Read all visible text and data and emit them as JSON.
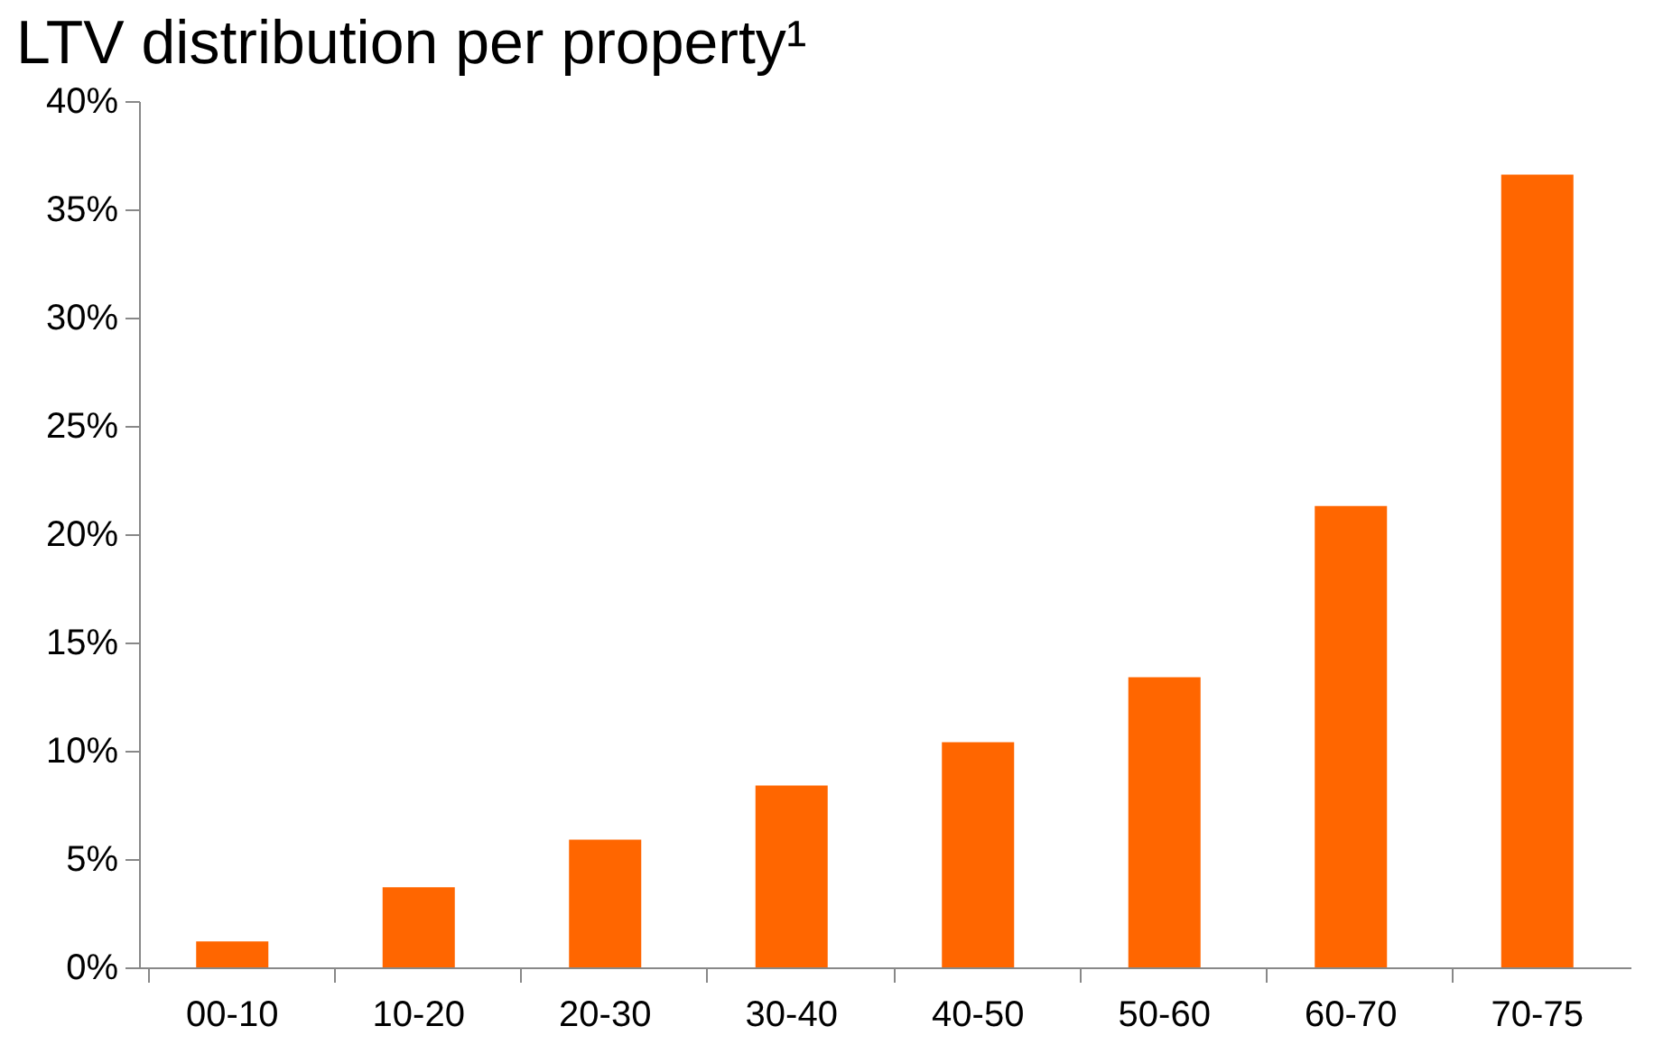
{
  "chart_data": {
    "type": "bar",
    "title": "LTV distribution per property¹",
    "categories": [
      "00-10",
      "10-20",
      "20-30",
      "30-40",
      "40-50",
      "50-60",
      "60-70",
      "70-75"
    ],
    "values": [
      1.2,
      3.7,
      5.9,
      8.4,
      10.4,
      13.4,
      21.3,
      36.6
    ],
    "color": "#ff6600",
    "ylim": [
      0,
      40
    ],
    "yticks": [
      {
        "value": 0,
        "label": "0%"
      },
      {
        "value": 5,
        "label": "5%"
      },
      {
        "value": 10,
        "label": "10%"
      },
      {
        "value": 15,
        "label": "15%"
      },
      {
        "value": 20,
        "label": "20%"
      },
      {
        "value": 25,
        "label": "25%"
      },
      {
        "value": 30,
        "label": "30%"
      },
      {
        "value": 35,
        "label": "35%"
      },
      {
        "value": 40,
        "label": "40%"
      }
    ],
    "grid": false
  }
}
